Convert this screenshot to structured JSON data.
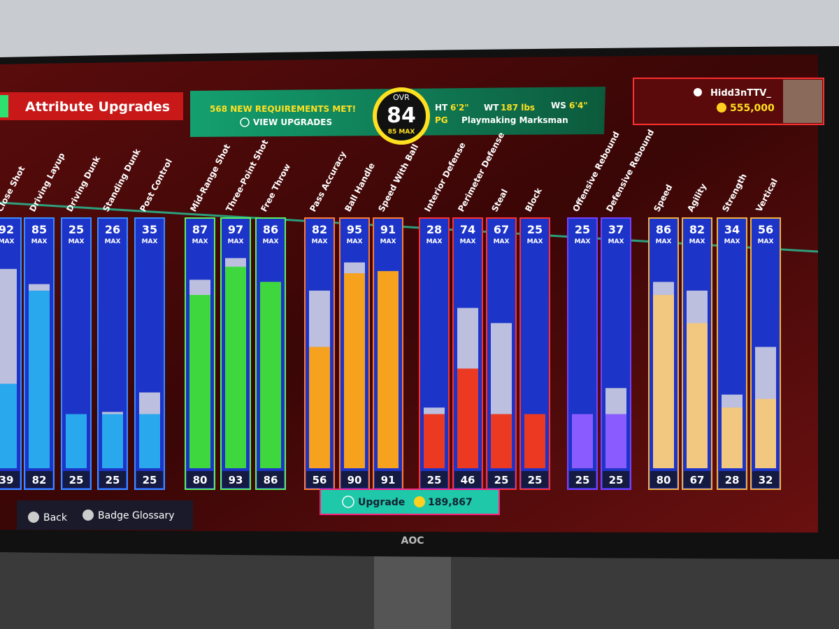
{
  "header": {
    "title": "Attribute Upgrades",
    "requirements": "568 NEW REQUIREMENTS MET!",
    "view_upgrades": "VIEW UPGRADES",
    "ovr_label": "OVR",
    "ovr": "84",
    "ovr_max": "85 MAX",
    "ht_label": "HT",
    "ht": "6'2\"",
    "wt_label": "WT",
    "wt": "187 lbs",
    "ws_label": "WS",
    "ws": "6'4\"",
    "position": "PG",
    "archetype": "Playmaking Marksman",
    "username": "Hidd3nTTV_",
    "vc": "555,000"
  },
  "max_label": "MAX",
  "groups": [
    {
      "color": "#2aa8ee",
      "border": "#3a8cff",
      "attributes": [
        {
          "name": "Close Shot",
          "max": 92,
          "current": 39
        },
        {
          "name": "Driving Layup",
          "max": 85,
          "current": 82
        },
        {
          "name": "Driving Dunk",
          "max": 25,
          "current": 25
        },
        {
          "name": "Standing Dunk",
          "max": 26,
          "current": 25
        },
        {
          "name": "Post Control",
          "max": 35,
          "current": 25
        }
      ]
    },
    {
      "color": "#3ed83e",
      "border": "#5cf05c",
      "attributes": [
        {
          "name": "Mid-Range Shot",
          "max": 87,
          "current": 80
        },
        {
          "name": "Three-Point Shot",
          "max": 97,
          "current": 93
        },
        {
          "name": "Free Throw",
          "max": 86,
          "current": 86
        }
      ]
    },
    {
      "color": "#f6a21e",
      "border": "#ff7a30",
      "attributes": [
        {
          "name": "Pass Accuracy",
          "max": 82,
          "current": 56
        },
        {
          "name": "Ball Handle",
          "max": 95,
          "current": 90
        },
        {
          "name": "Speed With Ball",
          "max": 91,
          "current": 91
        }
      ]
    },
    {
      "color": "#ec3a22",
      "border": "#ff3030",
      "attributes": [
        {
          "name": "Interior Defense",
          "max": 28,
          "current": 25
        },
        {
          "name": "Perimeter Defense",
          "max": 74,
          "current": 46
        },
        {
          "name": "Steal",
          "max": 67,
          "current": 25
        },
        {
          "name": "Block",
          "max": 25,
          "current": 25
        }
      ]
    },
    {
      "color": "#8a5cff",
      "border": "#7a40ff",
      "attributes": [
        {
          "name": "Offensive Rebound",
          "max": 25,
          "current": 25
        },
        {
          "name": "Defensive Rebound",
          "max": 37,
          "current": 25
        }
      ]
    },
    {
      "color": "#f2c880",
      "border": "#f0b040",
      "attributes": [
        {
          "name": "Speed",
          "max": 86,
          "current": 80
        },
        {
          "name": "Agility",
          "max": 82,
          "current": 67
        },
        {
          "name": "Strength",
          "max": 34,
          "current": 28
        },
        {
          "name": "Vertical",
          "max": 56,
          "current": 32
        }
      ]
    }
  ],
  "footer": {
    "upgrade": "Upgrade",
    "cost": "189,867",
    "back": "Back",
    "badge_glossary": "Badge Glossary"
  },
  "monitor_brand": "AOC"
}
